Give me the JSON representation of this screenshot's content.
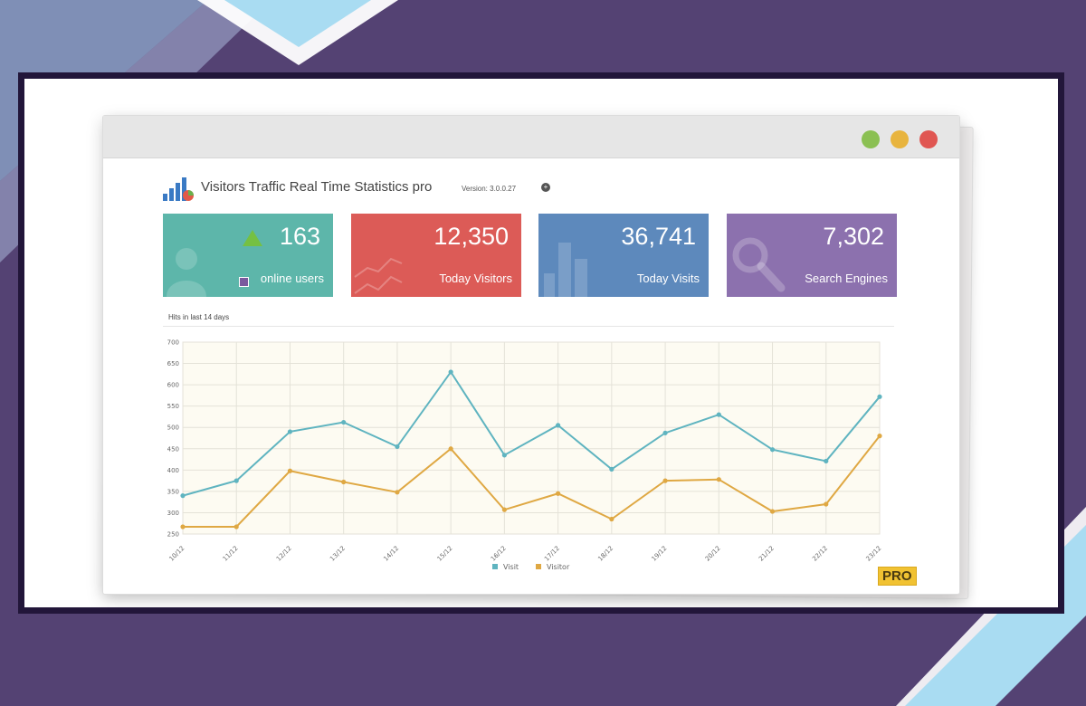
{
  "app": {
    "title": "Visitors Traffic Real Time Statistics pro",
    "version": "Version: 3.0.0.27",
    "info_icon": "info-icon"
  },
  "window_controls": [
    {
      "name": "minimize",
      "color": "#8bc053"
    },
    {
      "name": "maximize",
      "color": "#e8b43e"
    },
    {
      "name": "close",
      "color": "#e05652"
    }
  ],
  "cards": [
    {
      "value": "163",
      "label": "online users",
      "color": "#5db6aa",
      "icon": "user-icon"
    },
    {
      "value": "12,350",
      "label": "Today Visitors",
      "color": "#dc5b57",
      "icon": "trend-line-icon"
    },
    {
      "value": "36,741",
      "label": "Today Visits",
      "color": "#5d89bc",
      "icon": "bar-chart-icon"
    },
    {
      "value": "7,302",
      "label": "Search Engines",
      "color": "#8c71ae",
      "icon": "magnifier-icon"
    }
  ],
  "chart_section": {
    "title": "Hits in last 14 days"
  },
  "chart_data": {
    "type": "line",
    "title": "Hits in last 14 days",
    "categories": [
      "10/12",
      "11/12",
      "12/12",
      "13/12",
      "14/12",
      "15/12",
      "16/12",
      "17/12",
      "18/12",
      "19/12",
      "20/12",
      "21/12",
      "22/12",
      "23/12"
    ],
    "series": [
      {
        "name": "Visit",
        "color": "#5fb4c0",
        "values": [
          340,
          375,
          490,
          512,
          455,
          630,
          435,
          505,
          402,
          487,
          530,
          448,
          421,
          572
        ]
      },
      {
        "name": "Visitor",
        "color": "#dfa843",
        "values": [
          267,
          267,
          398,
          372,
          348,
          450,
          307,
          345,
          285,
          375,
          378,
          303,
          320,
          480
        ]
      }
    ],
    "yticks": [
      250,
      300,
      350,
      400,
      450,
      500,
      550,
      600,
      650,
      700
    ],
    "ylim": [
      250,
      700
    ],
    "grid": true,
    "legend": "bottom-center"
  },
  "badge": {
    "text": "PRO",
    "color": "#f1c232"
  },
  "colors": {
    "background": "#544273",
    "frame": "#22163a",
    "accent_light": "#a9dcf2"
  }
}
